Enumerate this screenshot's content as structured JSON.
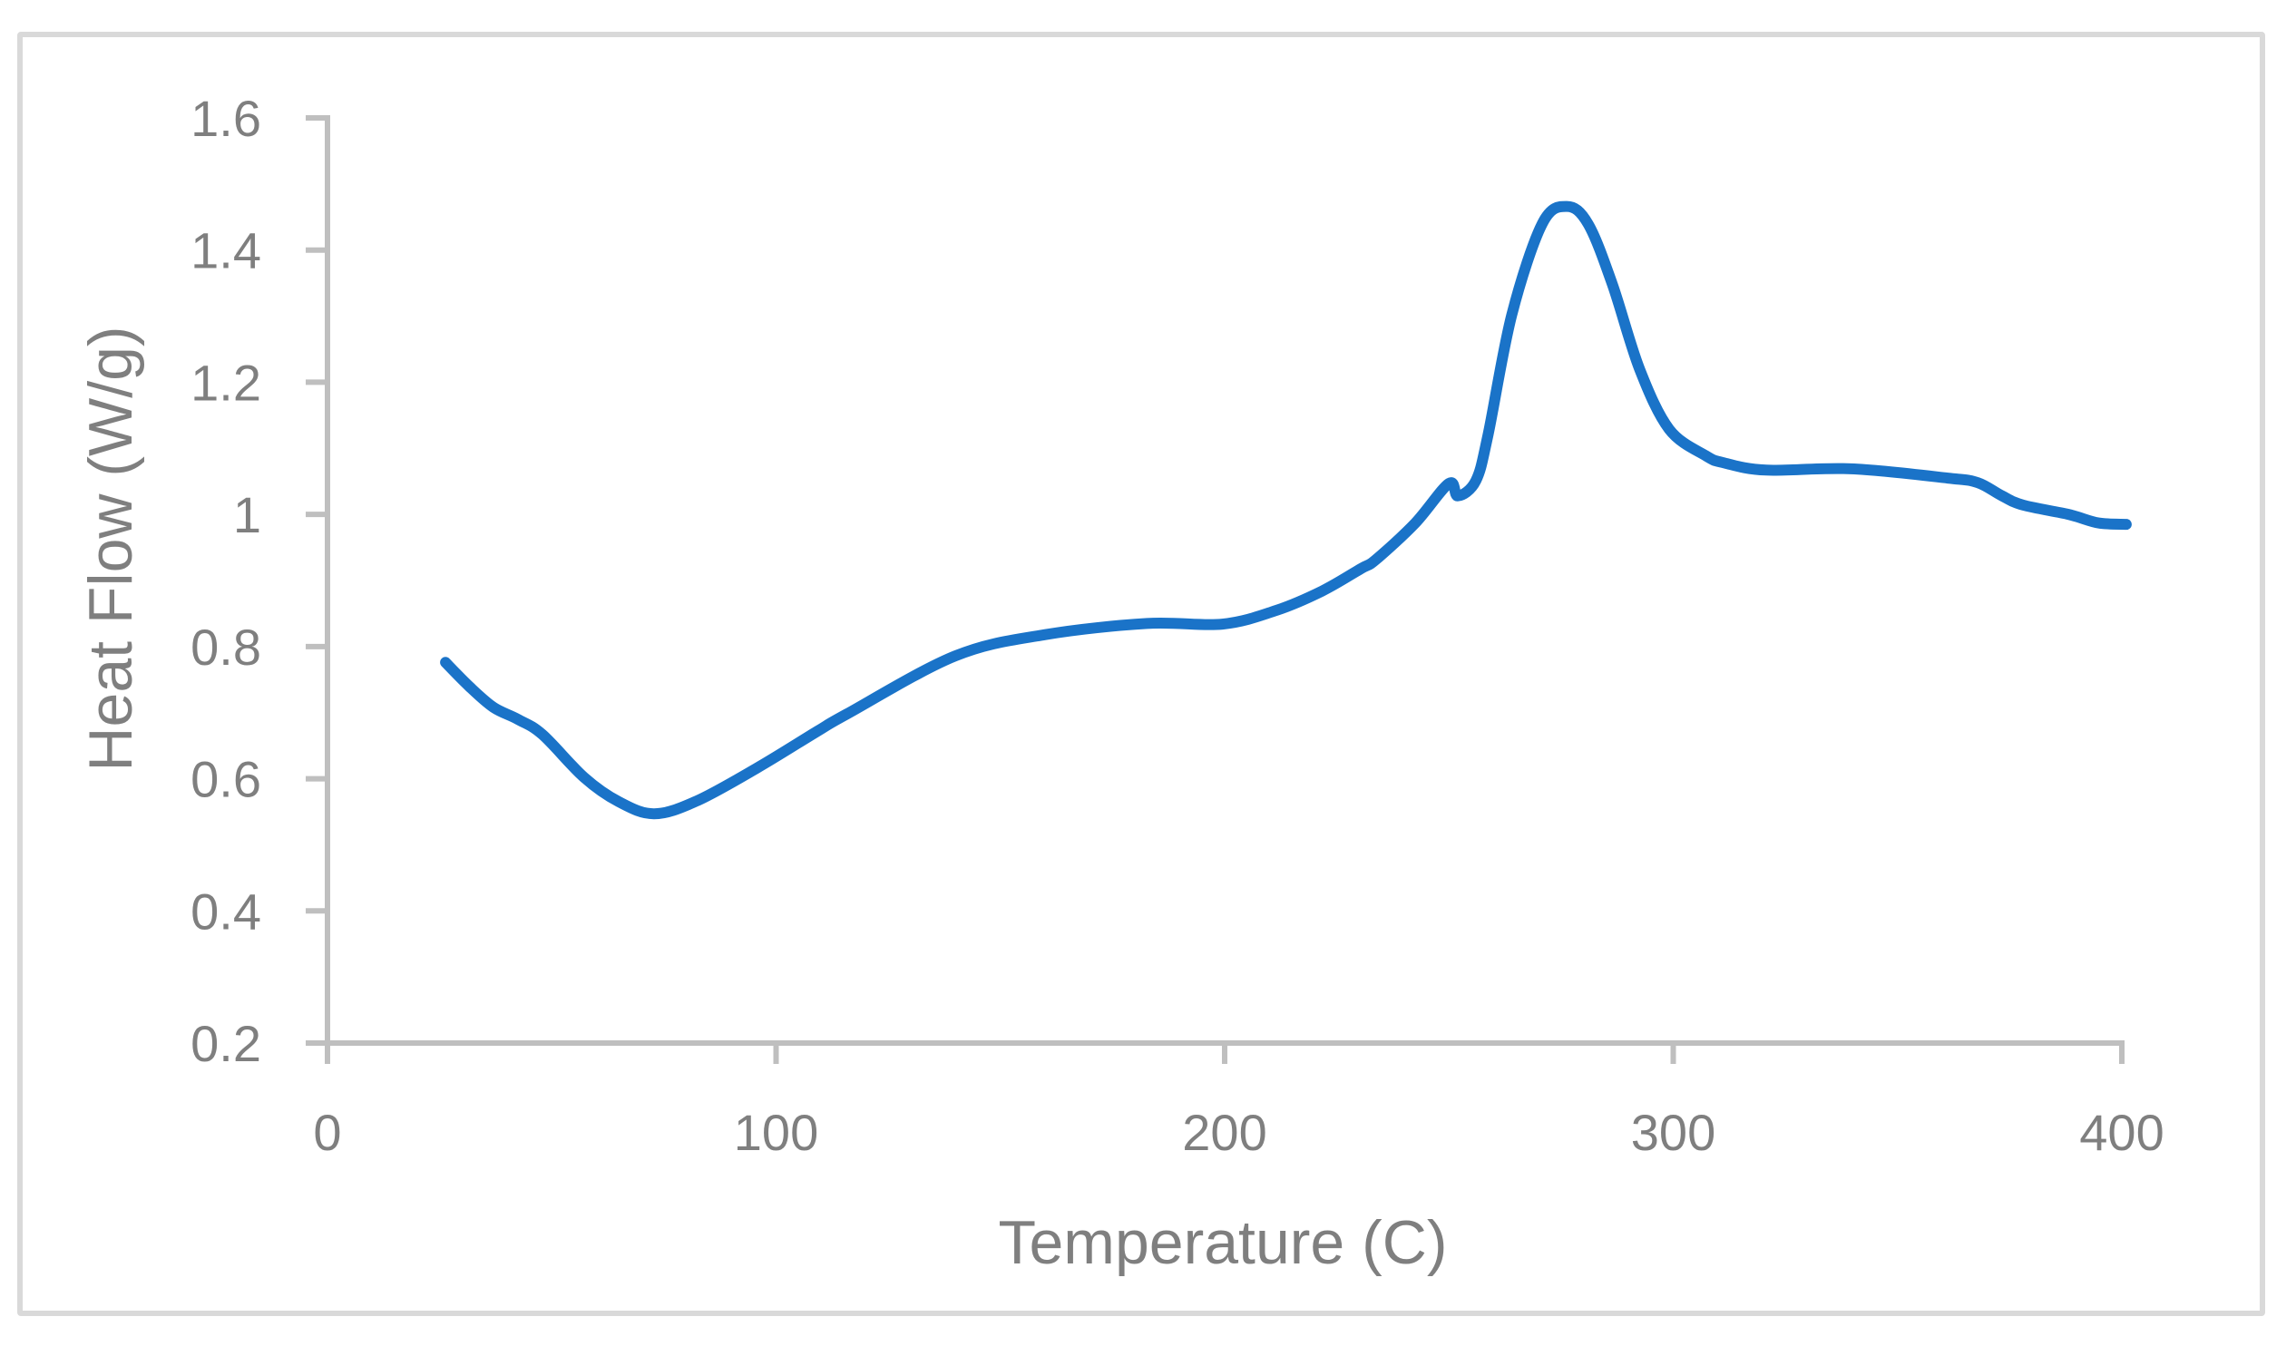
{
  "chart_data": {
    "type": "line",
    "title": "",
    "xlabel": "Temperature (C)",
    "ylabel": "Heat Flow (W/g)",
    "xlim": [
      0,
      400
    ],
    "ylim": [
      0.2,
      1.6
    ],
    "x_ticks": [
      0,
      100,
      200,
      300,
      400
    ],
    "y_ticks": [
      0.2,
      0.4,
      0.6,
      0.8,
      1,
      1.2,
      1.4,
      1.6
    ],
    "x_tick_labels": [
      "0",
      "100",
      "200",
      "300",
      "400"
    ],
    "y_tick_labels": [
      "0.2",
      "0.4",
      "0.6",
      "0.8",
      "1",
      "1.2",
      "1.4",
      "1.6"
    ],
    "grid": false,
    "legend": null,
    "series": [
      {
        "name": "Heat Flow",
        "color": "#1a73c8",
        "x": [
          26.3,
          31.7,
          37,
          42.4,
          47.9,
          57.2,
          65,
          72.8,
          82.2,
          95.7,
          109,
          115.8,
          140,
          160,
          182.7,
          199.5,
          211.6,
          221.7,
          230.4,
          233.8,
          242.5,
          250,
          252,
          256,
          258.7,
          264,
          270.8,
          276.3,
          281,
          286.4,
          292.5,
          299.1,
          307.2,
          311.3,
          320.7,
          339.6,
          361.2,
          367.9,
          373.3,
          378,
          388.1,
          394.8,
          401
        ],
        "y": [
          0.776,
          0.739,
          0.708,
          0.69,
          0.667,
          0.602,
          0.565,
          0.547,
          0.566,
          0.616,
          0.671,
          0.698,
          0.786,
          0.818,
          0.835,
          0.834,
          0.855,
          0.884,
          0.918,
          0.932,
          0.987,
          1.047,
          1.028,
          1.051,
          1.12,
          1.302,
          1.44,
          1.466,
          1.44,
          1.349,
          1.22,
          1.129,
          1.089,
          1.078,
          1.067,
          1.069,
          1.055,
          1.048,
          1.028,
          1.014,
          1.0,
          0.987,
          0.985
        ]
      }
    ]
  },
  "colors": {
    "line": "#1a73c8",
    "axis": "#bfbfbf",
    "text": "#7f7f7f",
    "frame": "#d9d9d9"
  }
}
